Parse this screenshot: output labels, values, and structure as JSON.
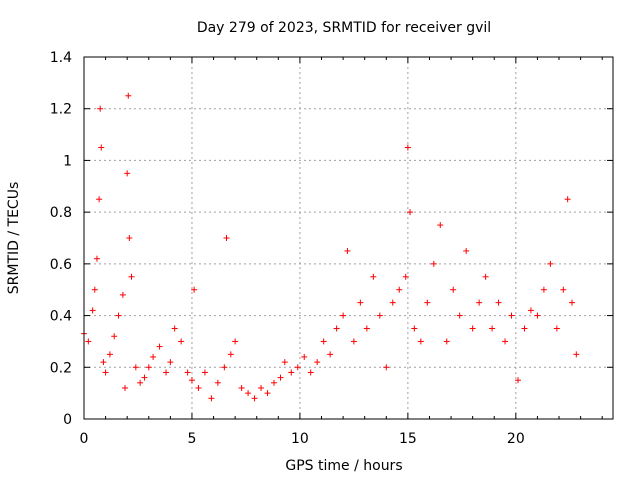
{
  "chart_data": {
    "type": "scatter",
    "title": "Day 279 of 2023, SRMTID for receiver gvil",
    "xlabel": "GPS time / hours",
    "ylabel": "SRMTID / TECUs",
    "xlim": [
      0,
      24.5
    ],
    "ylim": [
      0,
      1.4
    ],
    "x_ticks": [
      0,
      5,
      10,
      15,
      20
    ],
    "x_tick_labels": [
      "0",
      "5",
      "10",
      "15",
      "20"
    ],
    "y_ticks": [
      0,
      0.2,
      0.4,
      0.6,
      0.8,
      1.0,
      1.2,
      1.4
    ],
    "y_tick_labels": [
      "0",
      "0.2",
      "0.4",
      "0.6",
      "0.8",
      "1",
      "1.2",
      "1.4"
    ],
    "grid": true,
    "marker": "+",
    "color": "#ff0000",
    "series": [
      {
        "name": "SRMTID",
        "x": [
          0.0,
          0.2,
          0.4,
          0.5,
          0.6,
          0.7,
          0.75,
          0.8,
          0.9,
          1.0,
          1.2,
          1.4,
          1.6,
          1.8,
          1.9,
          2.0,
          2.05,
          2.1,
          2.2,
          2.4,
          2.6,
          2.8,
          3.0,
          3.2,
          3.5,
          3.8,
          4.0,
          4.2,
          4.5,
          4.8,
          5.0,
          5.1,
          5.3,
          5.6,
          5.9,
          6.2,
          6.5,
          6.6,
          6.8,
          7.0,
          7.3,
          7.6,
          7.9,
          8.2,
          8.5,
          8.8,
          9.1,
          9.3,
          9.6,
          9.9,
          10.2,
          10.5,
          10.8,
          11.1,
          11.4,
          11.7,
          12.0,
          12.2,
          12.5,
          12.8,
          13.1,
          13.4,
          13.7,
          14.0,
          14.3,
          14.6,
          14.9,
          15.0,
          15.1,
          15.3,
          15.6,
          15.9,
          16.2,
          16.5,
          16.8,
          17.1,
          17.4,
          17.7,
          18.0,
          18.3,
          18.6,
          18.9,
          19.2,
          19.5,
          19.8,
          20.1,
          20.4,
          20.7,
          21.0,
          21.3,
          21.6,
          21.9,
          22.2,
          22.4,
          22.6,
          22.8
        ],
        "y": [
          0.33,
          0.3,
          0.42,
          0.5,
          0.62,
          0.85,
          1.2,
          1.05,
          0.22,
          0.18,
          0.25,
          0.32,
          0.4,
          0.48,
          0.12,
          0.95,
          1.25,
          0.7,
          0.55,
          0.2,
          0.14,
          0.16,
          0.2,
          0.24,
          0.28,
          0.18,
          0.22,
          0.35,
          0.3,
          0.18,
          0.15,
          0.5,
          0.12,
          0.18,
          0.08,
          0.14,
          0.2,
          0.7,
          0.25,
          0.3,
          0.12,
          0.1,
          0.08,
          0.12,
          0.1,
          0.14,
          0.16,
          0.22,
          0.18,
          0.2,
          0.24,
          0.18,
          0.22,
          0.3,
          0.25,
          0.35,
          0.4,
          0.65,
          0.3,
          0.45,
          0.35,
          0.55,
          0.4,
          0.2,
          0.45,
          0.5,
          0.55,
          1.05,
          0.8,
          0.35,
          0.3,
          0.45,
          0.6,
          0.75,
          0.3,
          0.5,
          0.4,
          0.65,
          0.35,
          0.45,
          0.55,
          0.35,
          0.45,
          0.3,
          0.4,
          0.15,
          0.35,
          0.42,
          0.4,
          0.5,
          0.6,
          0.35,
          0.5,
          0.85,
          0.45,
          0.25
        ]
      }
    ]
  }
}
